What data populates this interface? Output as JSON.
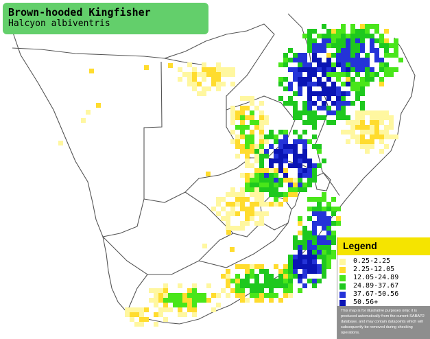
{
  "title": {
    "common_name": "Brown-hooded Kingfisher",
    "scientific_name": "Halcyon albiventris"
  },
  "legend": {
    "title": "Legend",
    "items": [
      {
        "label": "0.25-2.25",
        "color": "#fff7a0"
      },
      {
        "label": "2.25-12.05",
        "color": "#ffdc2e"
      },
      {
        "label": "12.05-24.89",
        "color": "#49e61a"
      },
      {
        "label": "24.89-37.67",
        "color": "#1ec81e"
      },
      {
        "label": "37.67-50.56",
        "color": "#2433d8"
      },
      {
        "label": "50.56+",
        "color": "#0a14b4"
      }
    ],
    "note": "This map is for illustrative purposes only; it is produced automatically from the current SABAP2 database, and may contain datapoints which will subsequently be removed during checking operations."
  },
  "map": {
    "background_color": "#ffffff",
    "border_color": "#555555"
  }
}
